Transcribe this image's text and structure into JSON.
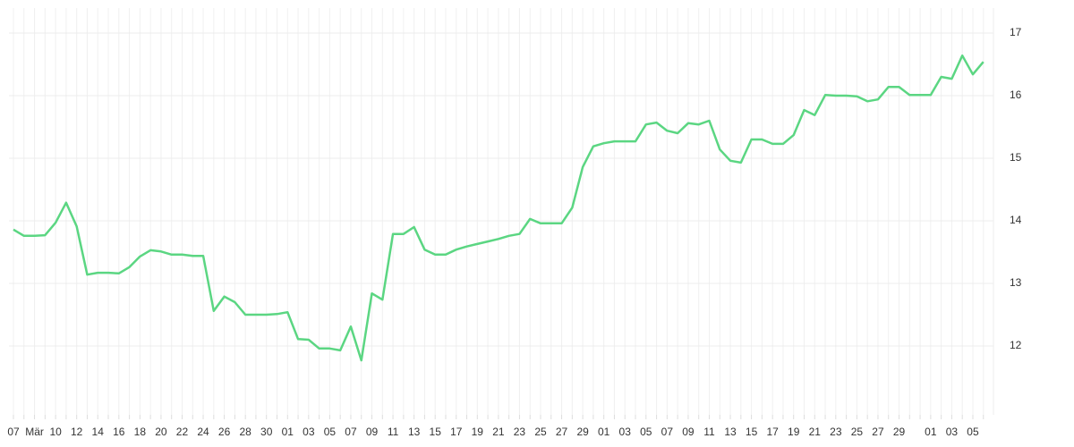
{
  "chart_data": {
    "type": "line",
    "categories": [
      "07",
      null,
      "Mär",
      null,
      "10",
      null,
      "12",
      null,
      "14",
      null,
      "16",
      null,
      "18",
      null,
      "20",
      null,
      "22",
      null,
      "24",
      null,
      "26",
      null,
      "28",
      null,
      "30",
      null,
      "01",
      null,
      "03",
      null,
      "05",
      null,
      "07",
      null,
      "09",
      null,
      "11",
      null,
      "13",
      null,
      "15",
      null,
      "17",
      null,
      "19",
      null,
      "21",
      null,
      "23",
      null,
      "25",
      null,
      "27",
      null,
      "29",
      null,
      "01",
      null,
      "03",
      null,
      "05",
      null,
      "07",
      null,
      "09",
      null,
      "11",
      null,
      "13",
      null,
      "15",
      null,
      "17",
      null,
      "19",
      null,
      "21",
      null,
      "23",
      null,
      "25",
      null,
      "27",
      null,
      "29",
      null,
      null,
      "01",
      null,
      "03",
      null,
      "05",
      null
    ],
    "series": [
      {
        "color": "#5bd682",
        "values": [
          13.86,
          13.76,
          13.76,
          13.77,
          13.97,
          14.29,
          13.91,
          13.14,
          13.17,
          13.17,
          13.16,
          13.26,
          13.43,
          13.53,
          13.51,
          13.46,
          13.46,
          13.44,
          13.44,
          12.56,
          12.79,
          12.7,
          12.5,
          12.5,
          12.5,
          12.51,
          12.54,
          12.11,
          12.1,
          11.96,
          11.96,
          11.93,
          12.31,
          11.77,
          12.84,
          12.74,
          13.79,
          13.79,
          13.9,
          13.54,
          13.46,
          13.46,
          13.54,
          13.59,
          13.63,
          13.67,
          13.71,
          13.76,
          13.79,
          14.03,
          13.96,
          13.96,
          13.96,
          14.21,
          14.86,
          15.19,
          15.24,
          15.27,
          15.27,
          15.27,
          15.54,
          15.57,
          15.44,
          15.4,
          15.56,
          15.54,
          15.6,
          15.14,
          14.96,
          14.93,
          15.3,
          15.3,
          15.23,
          15.23,
          15.37,
          15.77,
          15.69,
          16.01,
          16.0,
          16.0,
          15.99,
          15.91,
          15.94,
          16.14,
          16.14,
          16.01,
          16.01,
          16.01,
          16.3,
          16.27,
          16.64,
          16.34,
          16.54
        ]
      }
    ],
    "ylim": [
      10.9,
      17.4
    ],
    "yticks": [
      12,
      13,
      14,
      15,
      16,
      17
    ],
    "grid": true
  }
}
